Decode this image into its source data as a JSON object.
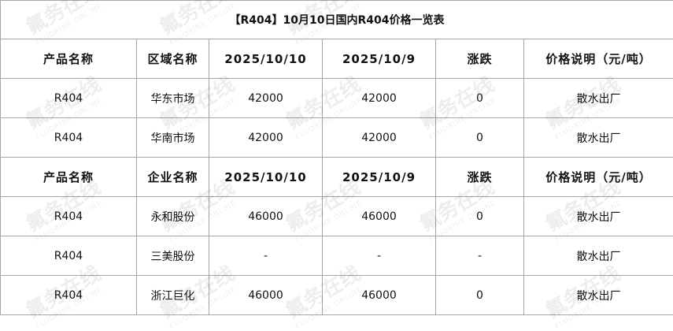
{
  "title": "【R404】10月10日国内R404价格一览表",
  "sections": [
    {
      "headers": [
        "产品名称",
        "区域名称",
        "2025/10/10",
        "2025/10/9",
        "涨跌",
        "价格说明（元/吨）"
      ],
      "rows": [
        [
          "R404",
          "华东市场",
          "42000",
          "42000",
          "0",
          "散水出厂"
        ],
        [
          "R404",
          "华南市场",
          "42000",
          "42000",
          "0",
          "散水出厂"
        ]
      ]
    },
    {
      "headers": [
        "产品名称",
        "企业名称",
        "2025/10/10",
        "2025/10/9",
        "涨跌",
        "价格说明（元/吨）"
      ],
      "rows": [
        [
          "R404",
          "永和股份",
          "46000",
          "46000",
          "0",
          "散水出厂"
        ],
        [
          "R404",
          "三美股份",
          "-",
          "-",
          "-",
          "散水出厂"
        ],
        [
          "R404",
          "浙江巨化",
          "46000",
          "46000",
          "0",
          "散水出厂"
        ]
      ]
    }
  ],
  "watermark": "氟务在线 FLUORINE ONLINE"
}
